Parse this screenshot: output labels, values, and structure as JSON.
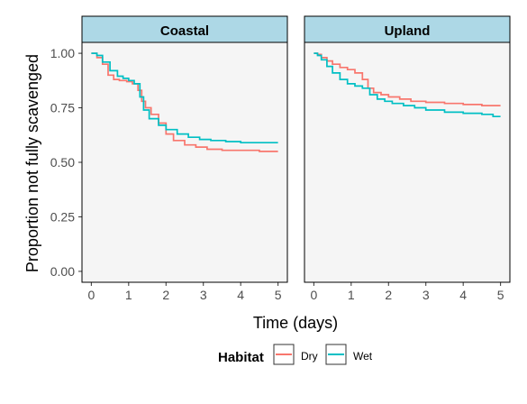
{
  "chart_data": {
    "type": "line",
    "subtype": "survival-step-curve",
    "facets": [
      {
        "label": "Coastal",
        "series": [
          {
            "name": "Dry",
            "x": [
              0,
              0.15,
              0.3,
              0.45,
              0.6,
              0.75,
              0.95,
              1.1,
              1.25,
              1.35,
              1.45,
              1.6,
              1.8,
              2.0,
              2.2,
              2.5,
              2.8,
              3.1,
              3.5,
              4.0,
              4.5,
              5.0
            ],
            "y": [
              1.0,
              0.98,
              0.95,
              0.9,
              0.88,
              0.875,
              0.87,
              0.86,
              0.83,
              0.78,
              0.75,
              0.72,
              0.68,
              0.63,
              0.6,
              0.58,
              0.57,
              0.56,
              0.555,
              0.555,
              0.55,
              0.55
            ]
          },
          {
            "name": "Wet",
            "x": [
              0,
              0.15,
              0.3,
              0.5,
              0.7,
              0.85,
              1.0,
              1.15,
              1.3,
              1.4,
              1.55,
              1.8,
              2.0,
              2.3,
              2.6,
              2.9,
              3.2,
              3.6,
              4.0,
              4.5,
              5.0
            ],
            "y": [
              1.0,
              0.99,
              0.96,
              0.92,
              0.895,
              0.885,
              0.875,
              0.86,
              0.8,
              0.74,
              0.7,
              0.67,
              0.65,
              0.63,
              0.615,
              0.605,
              0.6,
              0.595,
              0.59,
              0.59,
              0.59
            ]
          }
        ]
      },
      {
        "label": "Upland",
        "series": [
          {
            "name": "Dry",
            "x": [
              0,
              0.1,
              0.2,
              0.35,
              0.5,
              0.7,
              0.9,
              1.1,
              1.3,
              1.45,
              1.6,
              1.8,
              2.0,
              2.3,
              2.6,
              3.0,
              3.5,
              4.0,
              4.5,
              5.0
            ],
            "y": [
              1.0,
              0.995,
              0.98,
              0.965,
              0.95,
              0.935,
              0.925,
              0.91,
              0.88,
              0.84,
              0.82,
              0.81,
              0.8,
              0.79,
              0.78,
              0.775,
              0.77,
              0.765,
              0.76,
              0.76
            ]
          },
          {
            "name": "Wet",
            "x": [
              0,
              0.1,
              0.2,
              0.35,
              0.5,
              0.7,
              0.9,
              1.1,
              1.3,
              1.5,
              1.7,
              1.9,
              2.1,
              2.4,
              2.7,
              3.0,
              3.5,
              4.0,
              4.5,
              4.8,
              5.0
            ],
            "y": [
              1.0,
              0.99,
              0.97,
              0.94,
              0.91,
              0.88,
              0.86,
              0.85,
              0.84,
              0.81,
              0.79,
              0.78,
              0.77,
              0.76,
              0.75,
              0.74,
              0.73,
              0.725,
              0.72,
              0.71,
              0.71
            ]
          }
        ]
      }
    ],
    "series_colors": {
      "Dry": "#F8766D",
      "Wet": "#00BFC4"
    },
    "xlabel": "Time (days)",
    "ylabel": "Proportion not fully scavenged",
    "xlim": [
      0,
      5
    ],
    "ylim": [
      0,
      1
    ],
    "x_ticks": [
      "0",
      "1",
      "2",
      "3",
      "4",
      "5"
    ],
    "y_ticks": [
      "0.00",
      "0.25",
      "0.50",
      "0.75",
      "1.00"
    ],
    "grid": false,
    "legend": {
      "title": "Habitat",
      "placement": "bottom",
      "entries": [
        "Dry",
        "Wet"
      ]
    },
    "style": {
      "panel_background": "#f5f5f5",
      "strip_background": "#add8e6",
      "border": "#000000",
      "tick_text": "#4d4d4d"
    }
  }
}
